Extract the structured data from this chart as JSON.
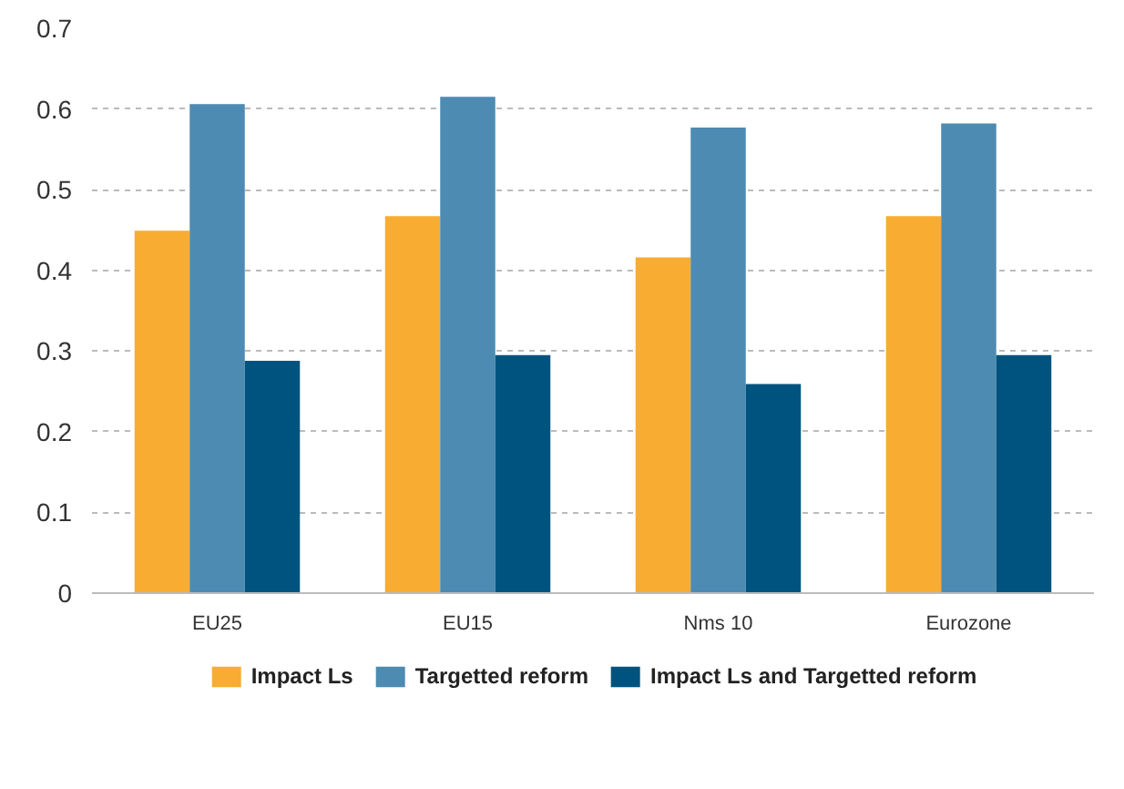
{
  "chart_data": {
    "type": "bar",
    "categories": [
      "EU25",
      "EU15",
      "Nms 10",
      "Eurozone"
    ],
    "series": [
      {
        "name": "Impact Ls",
        "color": "#f8ac31",
        "values": [
          0.449,
          0.467,
          0.416,
          0.467
        ]
      },
      {
        "name": "Targetted reform",
        "color": "#4d8bb2",
        "values": [
          0.606,
          0.615,
          0.577,
          0.582
        ]
      },
      {
        "name": "Impact Ls and Targetted reform",
        "color": "#00537e",
        "values": [
          0.288,
          0.295,
          0.259,
          0.295
        ]
      }
    ],
    "ylim": [
      0,
      0.7
    ],
    "yticks": [
      0,
      0.1,
      0.2,
      0.3,
      0.4,
      0.5,
      0.6,
      0.7
    ],
    "grid": "y",
    "legend": "bottom"
  }
}
